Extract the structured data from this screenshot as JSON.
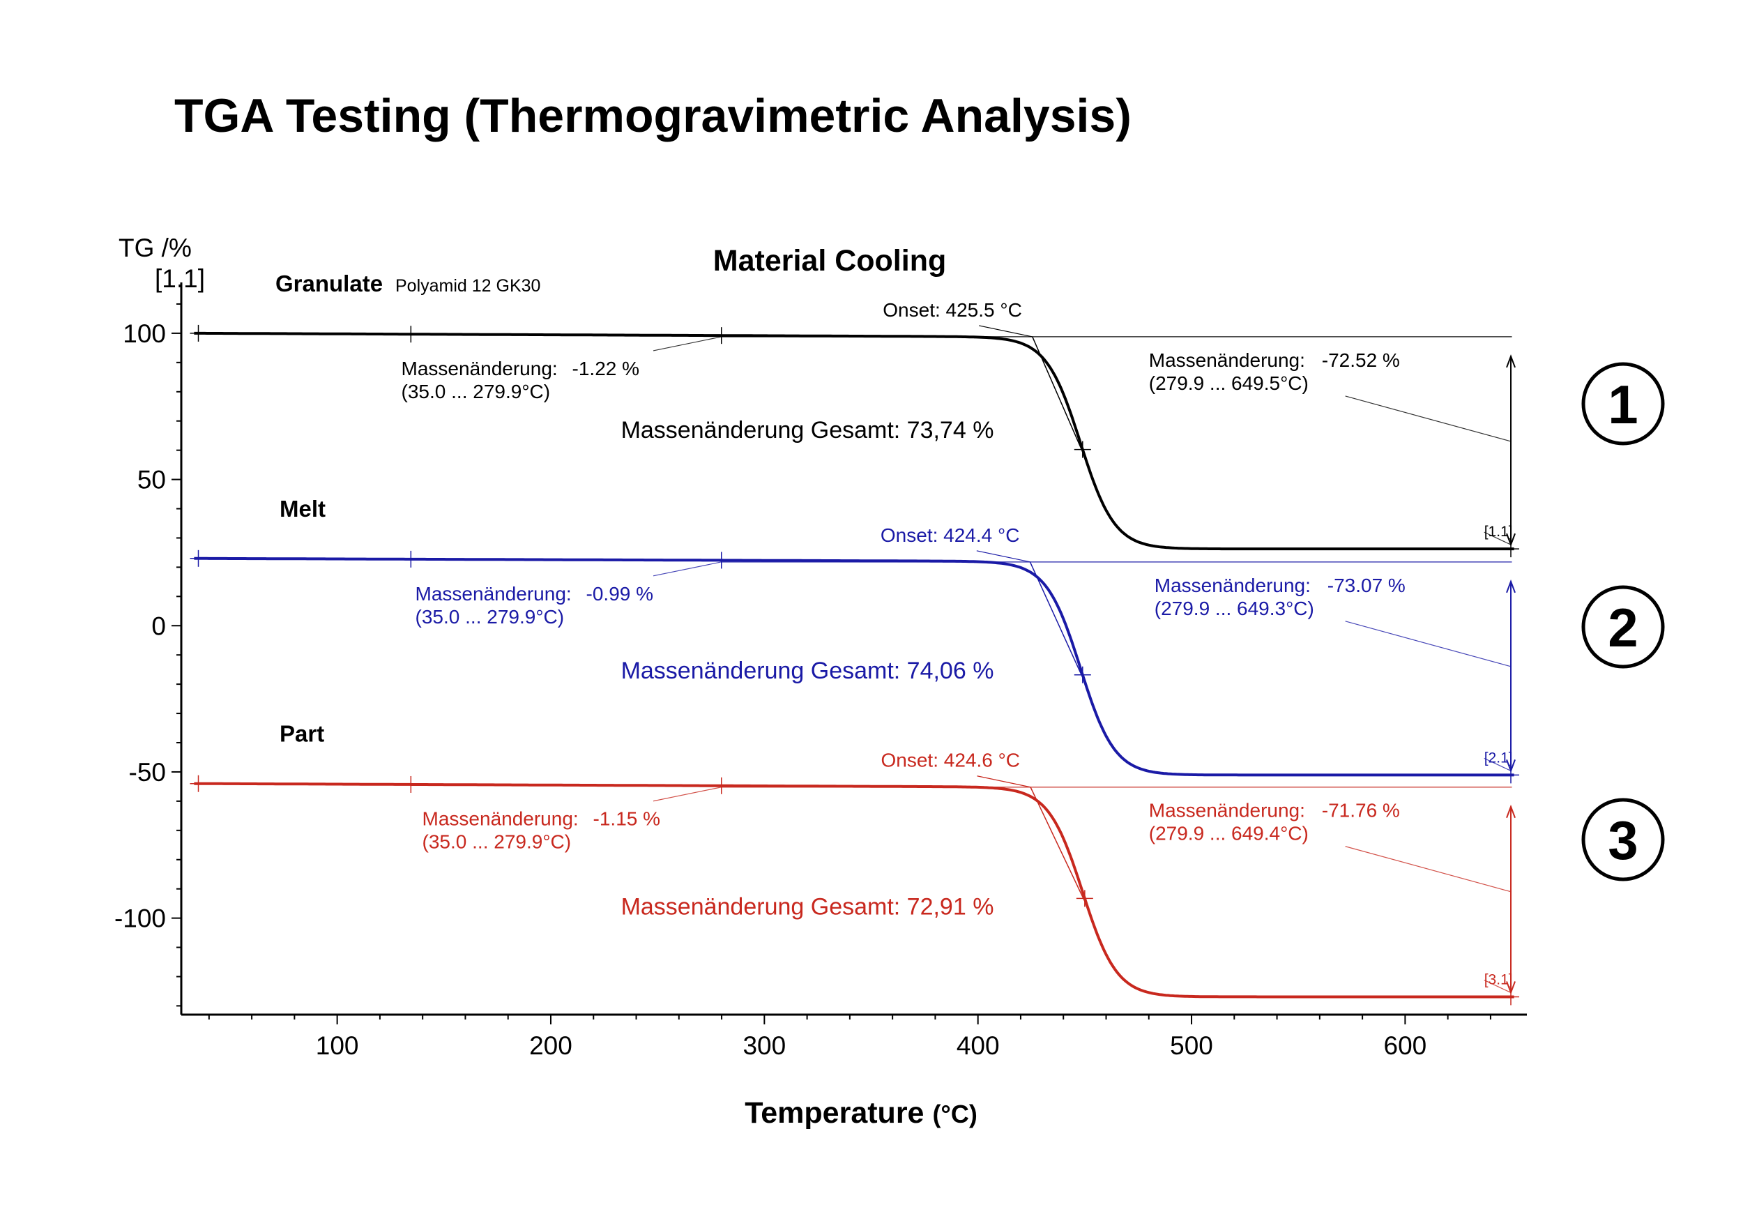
{
  "page_title": "TGA Testing (Thermogravimetric Analysis)",
  "x_title": "Temperature",
  "x_unit": "(°C)",
  "chart_data": {
    "type": "line",
    "title": "Material Cooling",
    "ylabel": "TG /%",
    "ylabel_sub": "[1.1]",
    "xlabel": "Temperature (°C)",
    "xlim": [
      27,
      657
    ],
    "ylim": [
      -133,
      115
    ],
    "x_ticks": [
      100,
      200,
      300,
      400,
      500,
      600
    ],
    "y_ticks": [
      100,
      50,
      0,
      -50,
      -100
    ],
    "series": [
      {
        "name": "Granulate",
        "subtitle": "Polyamid 12 GK30",
        "color": "#000000",
        "badge": "1",
        "step_start": 100.0,
        "step_plateau": 98.78,
        "step_end": 26.26,
        "onset_temp": 425.5,
        "inflection": 448,
        "width": 8,
        "step_label": "[1.1]",
        "onset_label": "Onset: 425.5 °C",
        "small_change": {
          "label": "Massenänderung:",
          "value": "-1.22 %",
          "range": "(35.0 ... 279.9°C)"
        },
        "large_change": {
          "label": "Massenänderung:",
          "value": "-72.52 %",
          "range": "(279.9 ... 649.5°C)"
        },
        "total": "Massenänderung Gesamt: 73,74 %"
      },
      {
        "name": "Melt",
        "subtitle": "",
        "color": "#1a1aa6",
        "badge": "2",
        "step_start": 23.0,
        "step_plateau": 22.01,
        "step_end": -51.06,
        "onset_temp": 424.4,
        "inflection": 448,
        "width": 8,
        "step_label": "[2.1]",
        "onset_label": "Onset: 424.4 °C",
        "small_change": {
          "label": "Massenänderung:",
          "value": "-0.99 %",
          "range": "(35.0 ... 279.9°C)"
        },
        "large_change": {
          "label": "Massenänderung:",
          "value": "-73.07 %",
          "range": "(279.9 ... 649.3°C)"
        },
        "total": "Massenänderung Gesamt: 74,06 %"
      },
      {
        "name": "Part",
        "subtitle": "",
        "color": "#c8281e",
        "badge": "3",
        "step_start": -54.0,
        "step_plateau": -55.15,
        "step_end": -126.91,
        "onset_temp": 424.6,
        "inflection": 449,
        "width": 8,
        "step_label": "[3.1]",
        "onset_label": "Onset: 424.6 °C",
        "small_change": {
          "label": "Massenänderung:",
          "value": "-1.15 %",
          "range": "(35.0 ... 279.9°C)"
        },
        "large_change": {
          "label": "Massenänderung:",
          "value": "-71.76 %",
          "range": "(279.9 ... 649.4°C)"
        },
        "total": "Massenänderung Gesamt: 72,91 %"
      }
    ]
  }
}
